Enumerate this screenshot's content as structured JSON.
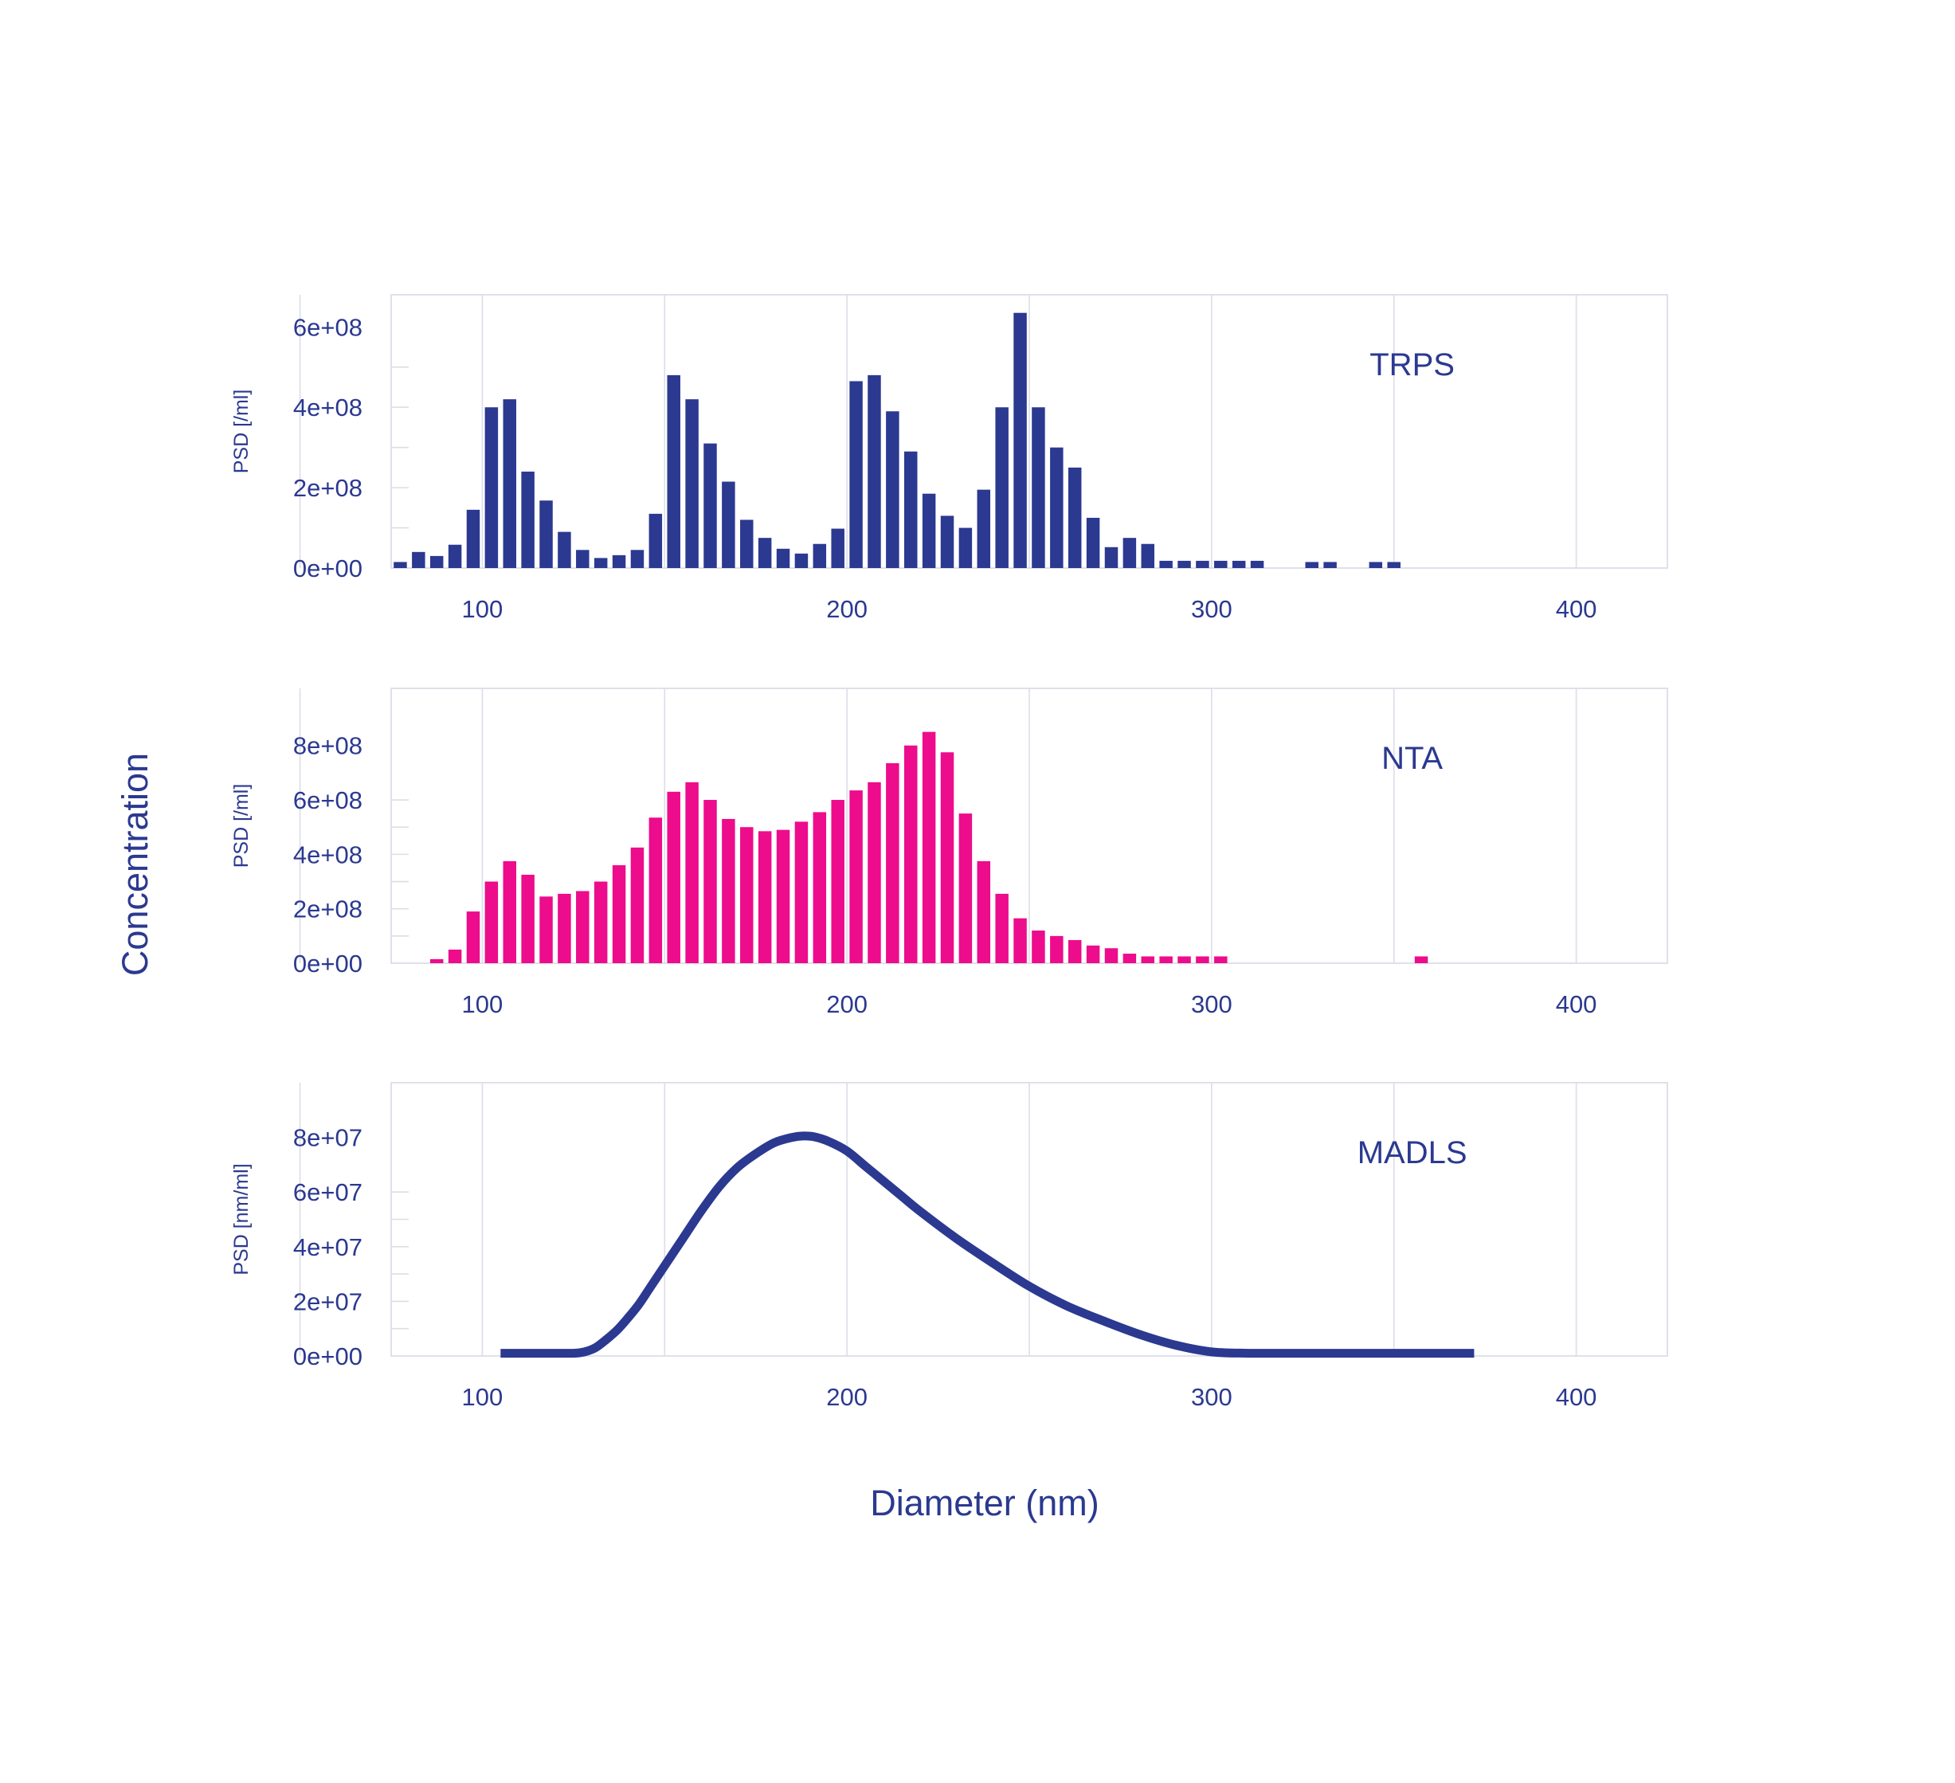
{
  "figure": {
    "xlabel": "Diameter (nm)",
    "ylabel": "Concentration"
  },
  "colors": {
    "navy": "#2b3990",
    "magenta": "#ec0c8c",
    "grid": "#dcdde8"
  },
  "chart_data": [
    {
      "type": "bar",
      "title": "",
      "label": "TRPS",
      "ylabel": "PSD [/ml]",
      "xlim": [
        75,
        425
      ],
      "ylim": [
        0,
        680000000
      ],
      "xticks": [
        100,
        200,
        300,
        400
      ],
      "xtick_labels": [
        "100",
        "200",
        "300",
        "400"
      ],
      "yticks": [
        0,
        200000000,
        400000000,
        600000000
      ],
      "ytick_labels": [
        "0e+00",
        "2e+08",
        "4e+08",
        "6e+08"
      ],
      "bin_width": 5,
      "color": "#2b3990",
      "x": [
        77.5,
        82.5,
        87.5,
        92.5,
        97.5,
        102.5,
        107.5,
        112.5,
        117.5,
        122.5,
        127.5,
        132.5,
        137.5,
        142.5,
        147.5,
        152.5,
        157.5,
        162.5,
        167.5,
        172.5,
        177.5,
        182.5,
        187.5,
        192.5,
        197.5,
        202.5,
        207.5,
        212.5,
        217.5,
        222.5,
        227.5,
        232.5,
        237.5,
        242.5,
        247.5,
        252.5,
        257.5,
        262.5,
        267.5,
        272.5,
        277.5,
        282.5,
        287.5,
        292.5,
        297.5,
        302.5,
        307.5,
        312.5,
        327.5,
        332.5,
        345.0,
        350.0
      ],
      "values": [
        15000000,
        40000000,
        30000000,
        58000000,
        145000000,
        400000000,
        420000000,
        240000000,
        168000000,
        90000000,
        45000000,
        25000000,
        32000000,
        45000000,
        135000000,
        480000000,
        420000000,
        310000000,
        215000000,
        120000000,
        75000000,
        48000000,
        36000000,
        60000000,
        98000000,
        465000000,
        480000000,
        390000000,
        290000000,
        185000000,
        130000000,
        100000000,
        195000000,
        400000000,
        635000000,
        400000000,
        300000000,
        250000000,
        125000000,
        52000000,
        75000000,
        60000000,
        18000000,
        18000000,
        18000000,
        18000000,
        18000000,
        18000000,
        15000000,
        15000000,
        15000000,
        15000000
      ]
    },
    {
      "type": "bar",
      "title": "",
      "label": "NTA",
      "ylabel": "PSD [/ml]",
      "xlim": [
        75,
        425
      ],
      "ylim": [
        0,
        1010000000
      ],
      "xticks": [
        100,
        200,
        300,
        400
      ],
      "xtick_labels": [
        "100",
        "200",
        "300",
        "400"
      ],
      "yticks": [
        0,
        200000000,
        400000000,
        600000000,
        800000000
      ],
      "ytick_labels": [
        "0e+00",
        "2e+08",
        "4e+08",
        "6e+08",
        "8e+08"
      ],
      "bin_width": 5,
      "color": "#ec0c8c",
      "x": [
        87.5,
        92.5,
        97.5,
        102.5,
        107.5,
        112.5,
        117.5,
        122.5,
        127.5,
        132.5,
        137.5,
        142.5,
        147.5,
        152.5,
        157.5,
        162.5,
        167.5,
        172.5,
        177.5,
        182.5,
        187.5,
        192.5,
        197.5,
        202.5,
        207.5,
        212.5,
        217.5,
        222.5,
        227.5,
        232.5,
        237.5,
        242.5,
        247.5,
        252.5,
        257.5,
        262.5,
        267.5,
        272.5,
        277.5,
        282.5,
        287.5,
        292.5,
        297.5,
        302.5,
        357.5
      ],
      "values": [
        15000000,
        50000000,
        190000000,
        300000000,
        375000000,
        325000000,
        245000000,
        255000000,
        265000000,
        300000000,
        360000000,
        425000000,
        535000000,
        630000000,
        665000000,
        600000000,
        530000000,
        500000000,
        485000000,
        490000000,
        520000000,
        555000000,
        600000000,
        635000000,
        665000000,
        735000000,
        800000000,
        850000000,
        775000000,
        550000000,
        375000000,
        255000000,
        165000000,
        120000000,
        100000000,
        85000000,
        65000000,
        55000000,
        35000000,
        25000000,
        25000000,
        25000000,
        25000000,
        25000000,
        25000000
      ]
    },
    {
      "type": "line",
      "title": "",
      "label": "MADLS",
      "ylabel": "PSD [nm/ml]",
      "xlim": [
        75,
        425
      ],
      "ylim": [
        0,
        100000000
      ],
      "xticks": [
        100,
        200,
        300,
        400
      ],
      "xtick_labels": [
        "100",
        "200",
        "300",
        "400"
      ],
      "yticks": [
        0,
        20000000,
        40000000,
        60000000,
        80000000
      ],
      "ytick_labels": [
        "0e+00",
        "2e+07",
        "4e+07",
        "6e+07",
        "8e+07"
      ],
      "color": "#2b3990",
      "x": [
        105,
        110,
        115,
        120,
        125,
        128,
        131,
        134,
        137,
        140,
        143,
        146,
        150,
        155,
        160,
        165,
        170,
        175,
        180,
        185,
        188,
        191,
        195,
        200,
        205,
        210,
        215,
        220,
        230,
        240,
        250,
        260,
        270,
        280,
        290,
        300,
        310,
        320,
        340,
        360,
        372
      ],
      "values": [
        1000000,
        1000000,
        1000000,
        1000000,
        1000000,
        1500000,
        3000000,
        6000000,
        9500000,
        14000000,
        19000000,
        25000000,
        33000000,
        43000000,
        53000000,
        62000000,
        69000000,
        74000000,
        78000000,
        80000000,
        80500000,
        80200000,
        78500000,
        75000000,
        69500000,
        64000000,
        58500000,
        53000000,
        43000000,
        34000000,
        25500000,
        18500000,
        13000000,
        8000000,
        4000000,
        1500000,
        1000000,
        1000000,
        1000000,
        1000000,
        1000000
      ]
    }
  ]
}
